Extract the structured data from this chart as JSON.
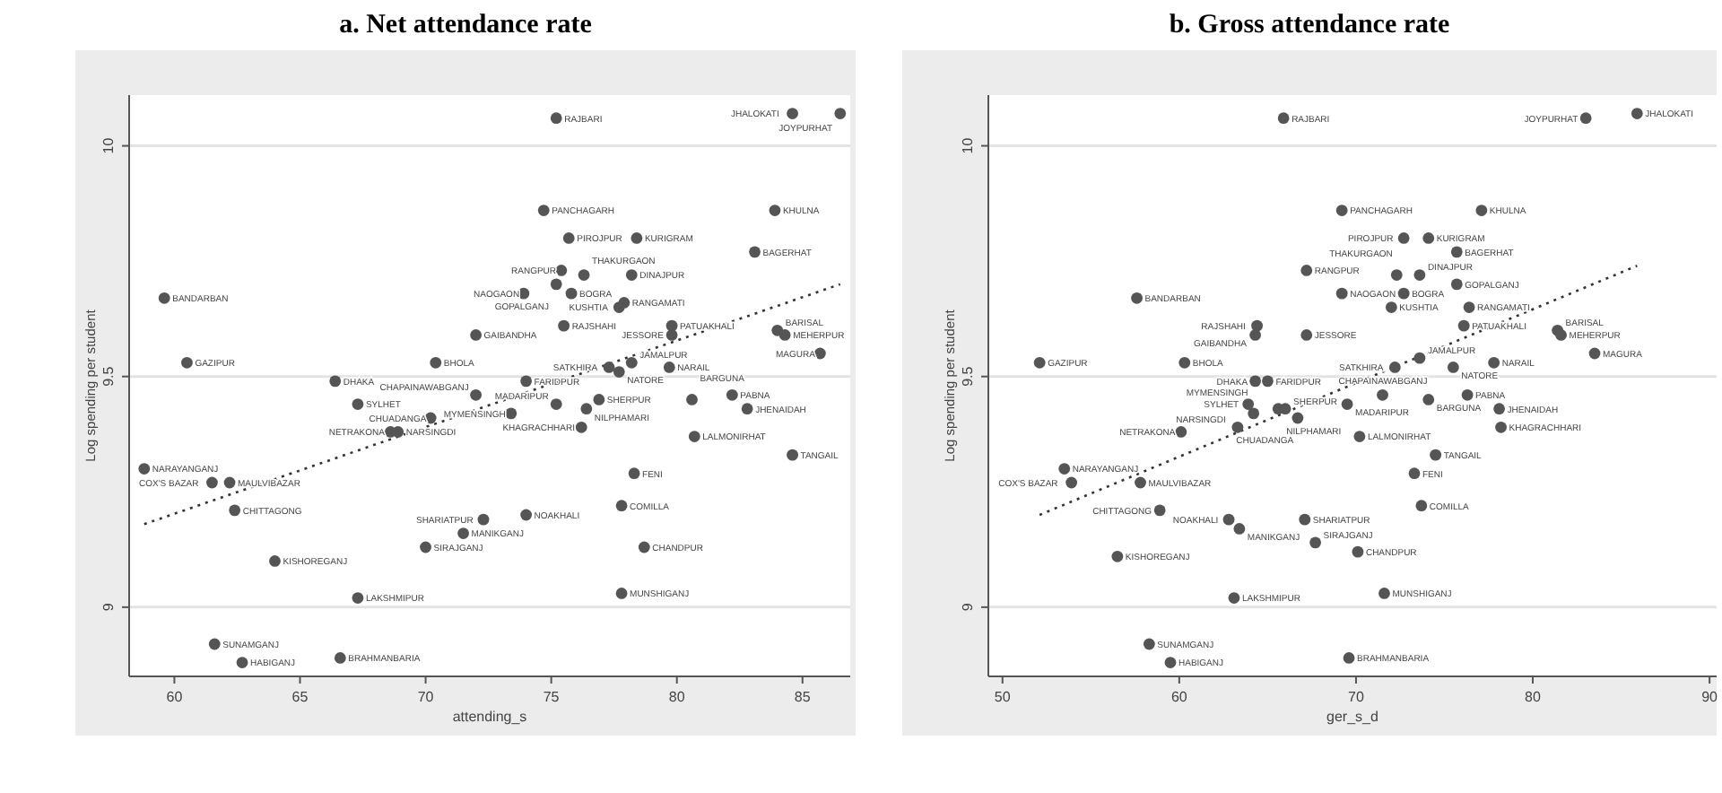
{
  "chart_data": [
    {
      "type": "scatter",
      "title": "a.   Net attendance rate",
      "xlabel": "attending_s",
      "ylabel": "Log spending per student",
      "xlim": [
        58.2,
        86.9
      ],
      "ylim": [
        8.85,
        10.11
      ],
      "xticks": [
        60,
        65,
        70,
        75,
        80,
        85
      ],
      "yticks": [
        9,
        9.5,
        10
      ],
      "grid": "y",
      "series": [
        {
          "marker": "circle",
          "color": "#555555",
          "x": [
            75.2,
            84.6,
            86.5,
            74.7,
            83.9,
            75.7,
            78.4,
            83.1,
            75.4,
            76.3,
            78.2,
            75.2,
            73.9,
            75.8,
            77.7,
            77.9,
            75.5,
            72.0,
            79.8,
            79.8,
            84.0,
            84.3,
            85.7,
            70.4,
            77.3,
            77.7,
            78.2,
            79.7,
            60.5,
            59.6,
            66.4,
            67.3,
            74.0,
            72.0,
            73.4,
            75.2,
            76.4,
            76.9,
            80.6,
            82.2,
            82.8,
            70.2,
            68.9,
            68.6,
            76.2,
            80.7,
            84.6,
            58.8,
            61.5,
            62.2,
            78.3,
            62.4,
            77.8,
            74.0,
            72.3,
            71.5,
            70.0,
            64.0,
            78.7,
            67.3,
            77.8,
            61.6,
            62.7,
            66.6
          ],
          "values": [
            10.06,
            10.07,
            10.07,
            9.86,
            9.86,
            9.8,
            9.8,
            9.77,
            9.73,
            9.72,
            9.72,
            9.7,
            9.68,
            9.68,
            9.65,
            9.66,
            9.61,
            9.59,
            9.61,
            9.59,
            9.6,
            9.59,
            9.55,
            9.53,
            9.52,
            9.51,
            9.53,
            9.52,
            9.53,
            9.67,
            9.49,
            9.44,
            9.49,
            9.46,
            9.42,
            9.44,
            9.43,
            9.45,
            9.45,
            9.46,
            9.43,
            9.41,
            9.38,
            9.38,
            9.39,
            9.37,
            9.33,
            9.3,
            9.27,
            9.27,
            9.29,
            9.21,
            9.22,
            9.2,
            9.19,
            9.16,
            9.13,
            9.1,
            9.13,
            9.02,
            9.03,
            8.92,
            8.88,
            8.89
          ],
          "value_labels": [
            "RAJBARI",
            "JHALOKATI",
            "JOYPURHAT",
            "PANCHAGARH",
            "KHULNA",
            "PIROJPUR",
            "KURIGRAM",
            "BAGERHAT",
            "RANGPUR",
            "THAKURGAON",
            "DINAJPUR",
            "GOPALGANJ",
            "NAOGAON",
            "BOGRA",
            "KUSHTIA",
            "RANGAMATI",
            "RAJSHAHI",
            "GAIBANDHA",
            "PATUAKHALI",
            "JESSORE",
            "BARISAL",
            "MEHERPUR",
            "MAGURA",
            "BHOLA",
            "SATKHIRA",
            "NATORE",
            "JAMALPUR",
            "NARAIL",
            "GAZIPUR",
            "BANDARBAN",
            "DHAKA",
            "SYLHET",
            "FARIDPUR",
            "CHAPAINAWABGANJ",
            "MYMENSINGH",
            "MADARIPUR",
            "NILPHAMARI",
            "SHERPUR",
            "BARGUNA",
            "PABNA",
            "JHENAIDAH",
            "CHUADANGA",
            "NARSINGDI",
            "NETRAKONA",
            "KHAGRACHHARI",
            "LALMONIRHAT",
            "TANGAIL",
            "NARAYANGANJ",
            "COX'S BAZAR",
            "MAULVIBAZAR",
            "FENI",
            "CHITTAGONG",
            "COMILLA",
            "NOAKHALI",
            "SHARIATPUR",
            "MANIKGANJ",
            "SIRAJGANJ",
            "KISHOREGANJ",
            "CHANDPUR",
            "LAKSHMIPUR",
            "MUNSHIGANJ",
            "SUNAMGANJ",
            "HABIGANJ",
            "BRAHMANBARIA"
          ]
        },
        {
          "type": "line",
          "marker": "none",
          "line_style": "dotted",
          "color": "#333333",
          "x": [
            58.8,
            86.5
          ],
          "values": [
            9.18,
            9.7
          ]
        }
      ]
    },
    {
      "type": "scatter",
      "title": "b.   Gross attendance rate",
      "xlabel": "ger_s_d",
      "ylabel": "Log spending per student",
      "xlim": [
        49.2,
        90.4
      ],
      "ylim": [
        8.85,
        10.11
      ],
      "xticks": [
        50,
        60,
        70,
        80,
        90
      ],
      "yticks": [
        9,
        9.5,
        10
      ],
      "grid": "y",
      "series": [
        {
          "marker": "circle",
          "color": "#555555",
          "x": [
            65.9,
            83.0,
            85.9,
            69.2,
            77.1,
            72.7,
            74.1,
            75.7,
            67.2,
            72.3,
            73.6,
            75.7,
            69.2,
            72.7,
            72.0,
            76.4,
            76.1,
            57.6,
            64.4,
            64.3,
            67.2,
            81.4,
            81.6,
            83.5,
            52.1,
            60.3,
            72.2,
            73.6,
            75.5,
            77.8,
            64.3,
            65.0,
            63.9,
            64.2,
            65.6,
            66.0,
            69.5,
            66.7,
            71.5,
            74.1,
            76.3,
            78.1,
            78.2,
            60.1,
            63.3,
            70.2,
            74.5,
            53.5,
            53.9,
            57.8,
            73.3,
            58.9,
            73.7,
            62.8,
            67.1,
            63.4,
            67.7,
            70.1,
            56.5,
            63.1,
            71.6,
            58.3,
            59.5,
            69.6
          ],
          "values": [
            10.06,
            10.06,
            10.07,
            9.86,
            9.86,
            9.8,
            9.8,
            9.77,
            9.73,
            9.72,
            9.72,
            9.7,
            9.68,
            9.68,
            9.65,
            9.65,
            9.61,
            9.67,
            9.61,
            9.59,
            9.59,
            9.6,
            9.59,
            9.55,
            9.53,
            9.53,
            9.52,
            9.54,
            9.52,
            9.53,
            9.49,
            9.49,
            9.44,
            9.42,
            9.43,
            9.43,
            9.44,
            9.41,
            9.46,
            9.45,
            9.46,
            9.43,
            9.39,
            9.38,
            9.39,
            9.37,
            9.33,
            9.3,
            9.27,
            9.27,
            9.29,
            9.21,
            9.22,
            9.19,
            9.19,
            9.17,
            9.14,
            9.12,
            9.11,
            9.02,
            9.03,
            8.92,
            8.88,
            8.89
          ],
          "value_labels": [
            "RAJBARI",
            "JOYPURHAT",
            "JHALOKATI",
            "PANCHAGARH",
            "KHULNA",
            "PIROJPUR",
            "KURIGRAM",
            "BAGERHAT",
            "RANGPUR",
            "THAKURGAON",
            "DINAJPUR",
            "GOPALGANJ",
            "NAOGAON",
            "BOGRA",
            "KUSHTIA",
            "RANGAMATI",
            "PATUAKHALI",
            "BANDARBAN",
            "RAJSHAHI",
            "GAIBANDHA",
            "JESSORE",
            "BARISAL",
            "MEHERPUR",
            "MAGURA",
            "GAZIPUR",
            "BHOLA",
            "SATKHIRA",
            "JAMALPUR",
            "NATORE",
            "NARAIL",
            "DHAKA",
            "FARIDPUR",
            "SYLHET",
            "MYMENSINGH",
            "NILPHAMARI",
            "SHERPUR",
            "MADARIPUR",
            "CHUADANGA",
            "CHAPAINAWABGANJ",
            "BARGUNA",
            "PABNA",
            "JHENAIDAH",
            "KHAGRACHHARI",
            "NETRAKONA",
            "NARSINGDI",
            "LALMONIRHAT",
            "TANGAIL",
            "NARAYANGANJ",
            "COX'S BAZAR",
            "MAULVIBAZAR",
            "FENI",
            "CHITTAGONG",
            "COMILLA",
            "NOAKHALI",
            "SHARIATPUR",
            "MANIKGANJ",
            "SIRAJGANJ",
            "CHANDPUR",
            "KISHOREGANJ",
            "LAKSHMIPUR",
            "MUNSHIGANJ",
            "SUNAMGANJ",
            "HABIGANJ",
            "BRAHMANBARIA"
          ]
        },
        {
          "type": "line",
          "marker": "none",
          "line_style": "dotted",
          "color": "#333333",
          "x": [
            52.1,
            85.9
          ],
          "values": [
            9.2,
            9.74
          ]
        }
      ]
    }
  ]
}
